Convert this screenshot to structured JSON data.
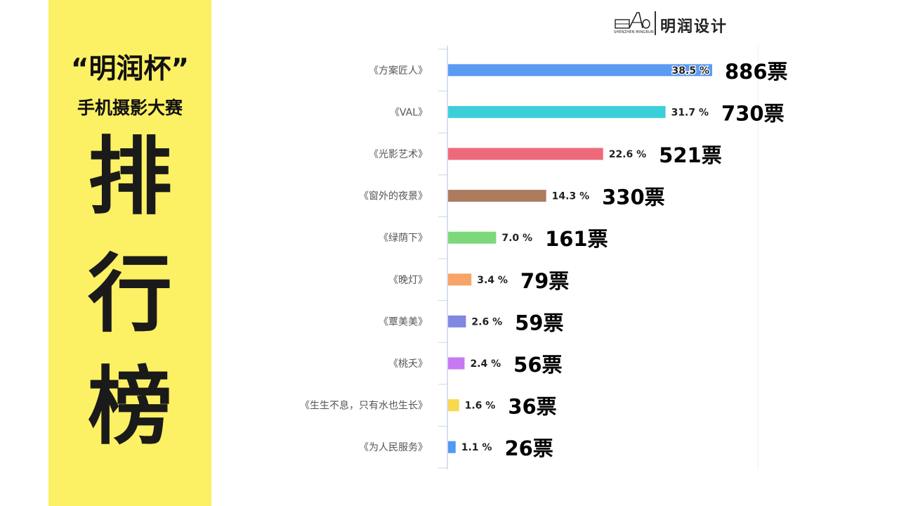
{
  "sidebar": {
    "title_line1": "“明润杯”",
    "title_line2": "手机摄影大赛",
    "big_chars": [
      "排",
      "行",
      "榜"
    ]
  },
  "logo": {
    "mark_letters": "AO",
    "subtitle": "SHENZHEN MINGRUN",
    "name": "明润设计"
  },
  "colors": {
    "sidebar_bg": "#fcf064"
  },
  "chart_data": {
    "type": "bar",
    "orientation": "horizontal",
    "categories": [
      "《方案匠人》",
      "《VAL》",
      "《光影艺术》",
      "《窗外的夜景》",
      "《绿荫下》",
      "《晚灯》",
      "《覃美美》",
      "《桃夭》",
      "《生生不息，只有水也生长》",
      "《为人民服务》"
    ],
    "values": [
      38.5,
      31.7,
      22.6,
      14.3,
      7.0,
      3.4,
      2.6,
      2.4,
      1.6,
      1.1
    ],
    "value_labels": [
      "38.5 %",
      "31.7 %",
      "22.6 %",
      "14.3 %",
      "7.0 %",
      "3.4 %",
      "2.6 %",
      "2.4 %",
      "1.6 %",
      "1.1 %"
    ],
    "vote_labels": [
      "886票",
      "730票",
      "521票",
      "330票",
      "161票",
      "79票",
      "59票",
      "56票",
      "36票",
      "26票"
    ],
    "bar_colors": [
      "#5b9bf2",
      "#3ccfd8",
      "#ee6a7a",
      "#ad7b5e",
      "#7dd87a",
      "#f7a468",
      "#8088e0",
      "#c67af2",
      "#f8d84e",
      "#4f9af2"
    ],
    "xlim": [
      0,
      38.5
    ],
    "grid": false,
    "legend": "none"
  }
}
